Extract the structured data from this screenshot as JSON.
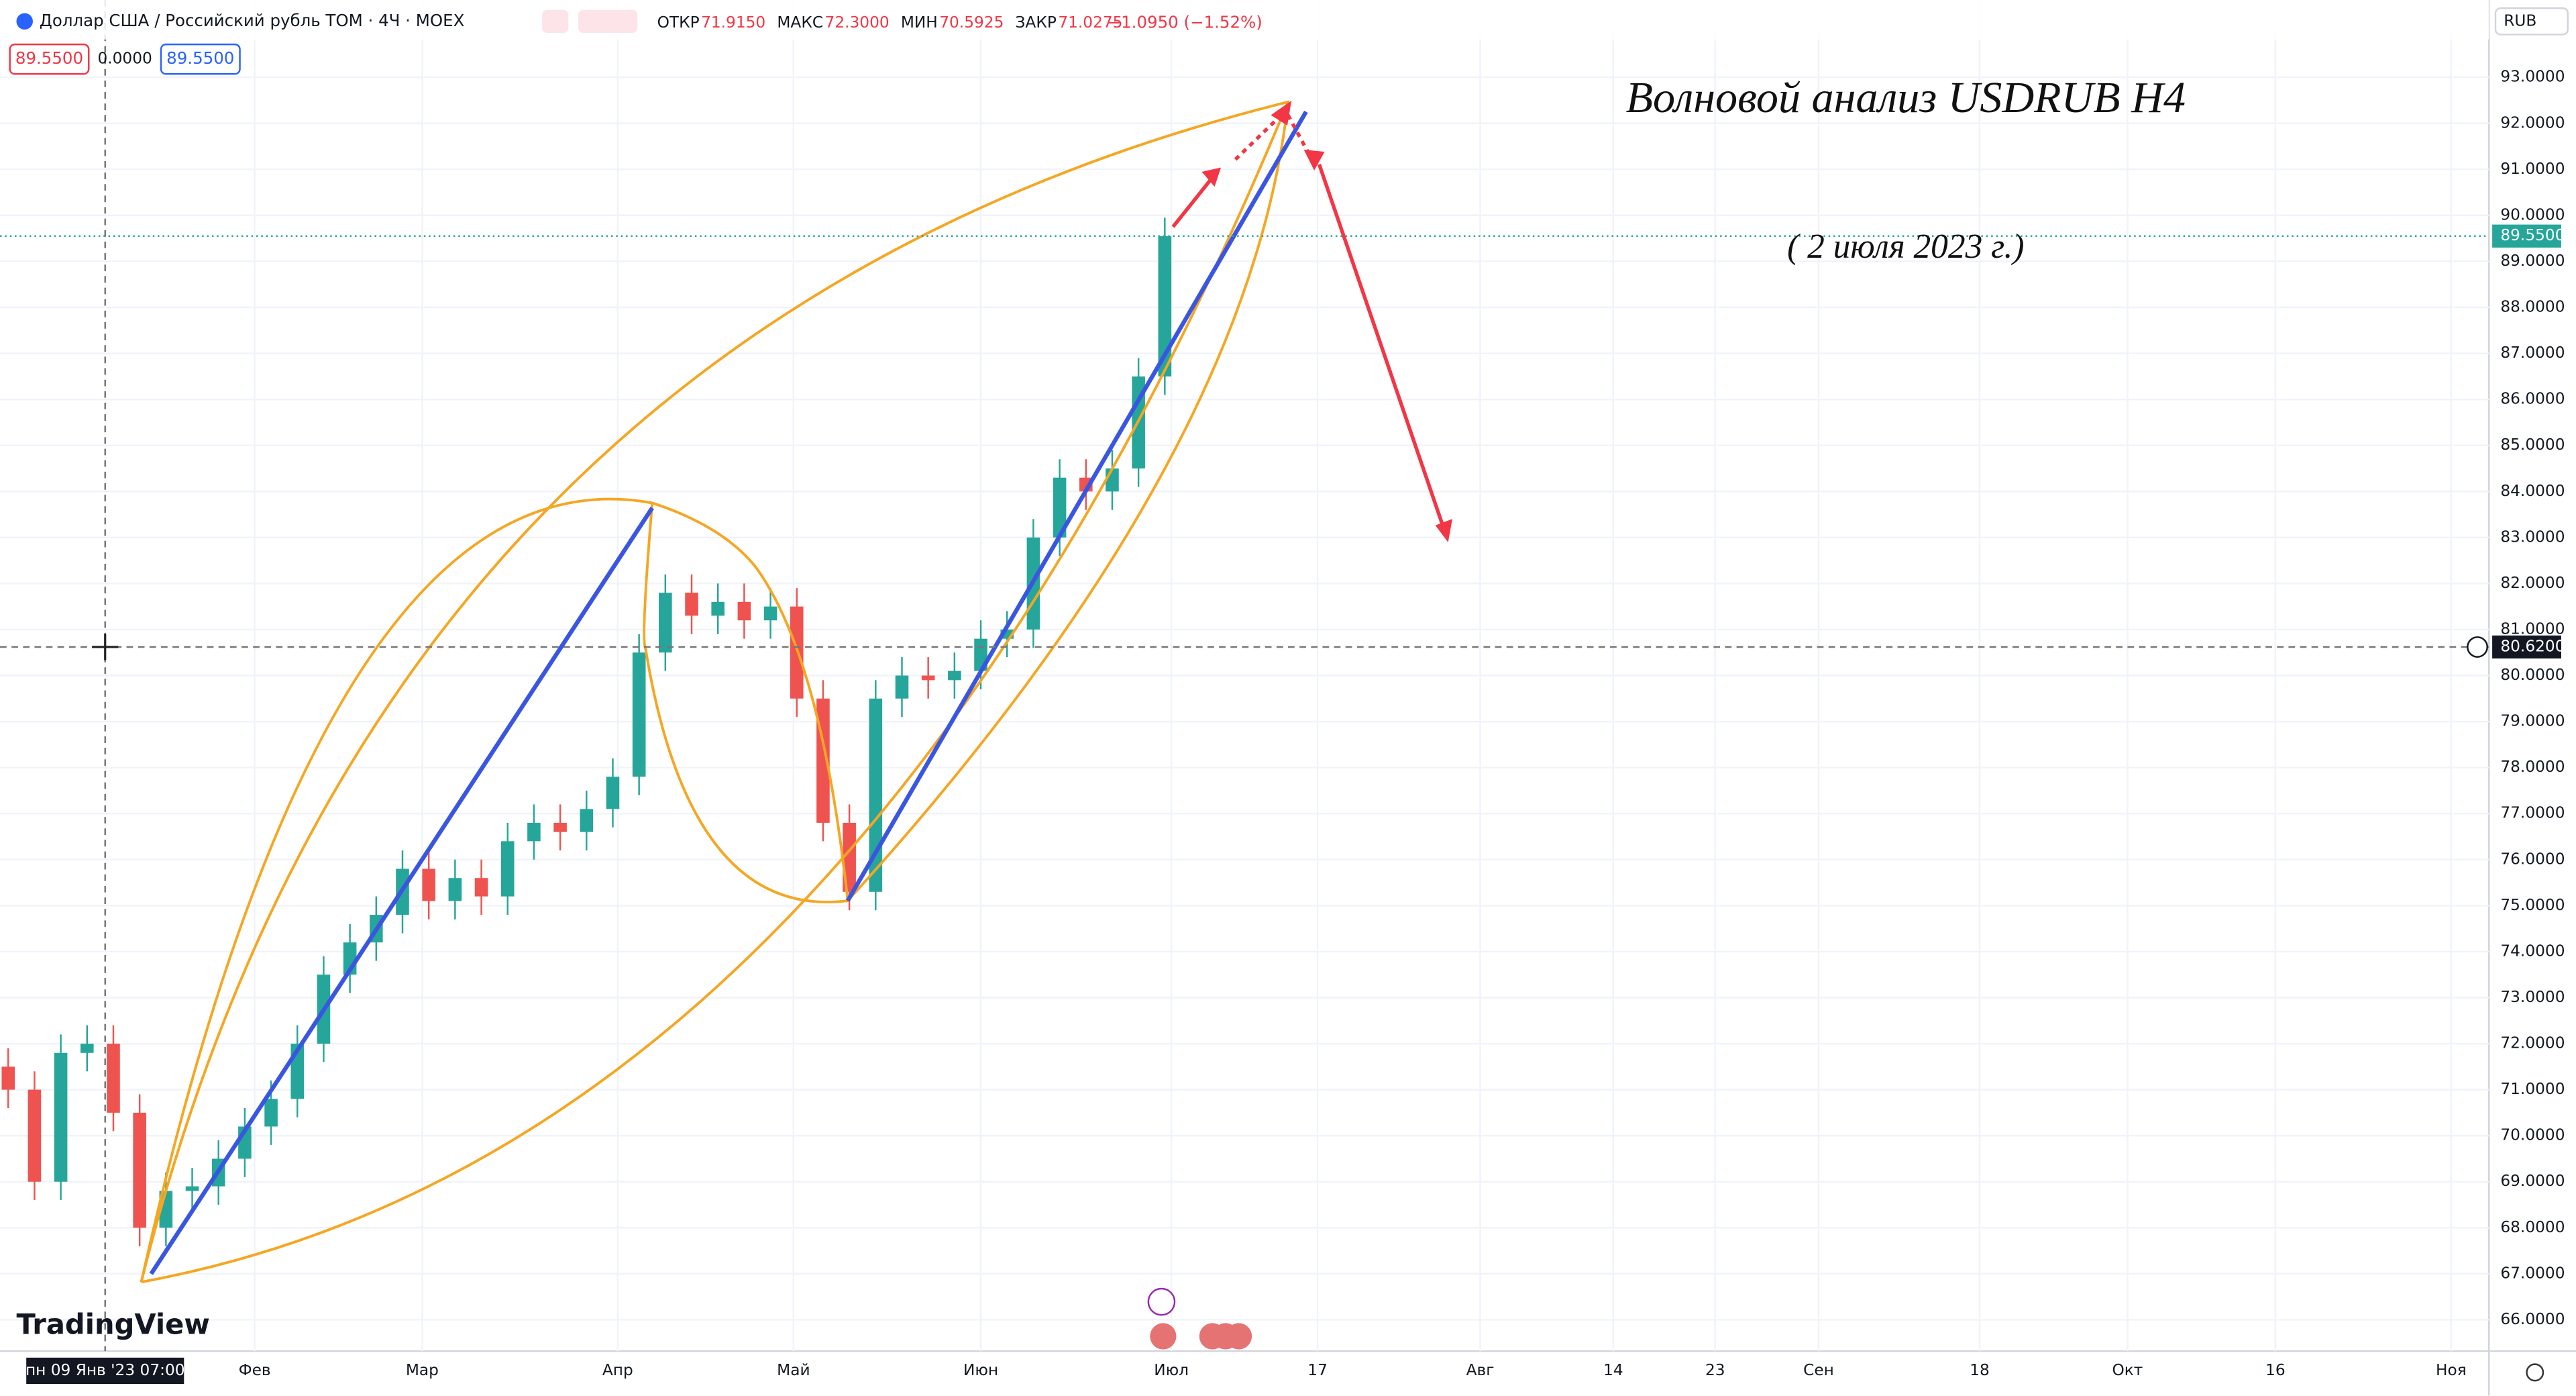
{
  "header": {
    "symbol": "Доллар США / Российский рубль TOM · 4Ч · MOEX",
    "ohlc": [
      {
        "label": "ОТКР",
        "value": "71.9150"
      },
      {
        "label": "МАКС",
        "value": "72.3000"
      },
      {
        "label": "МИН",
        "value": "70.5925"
      },
      {
        "label": "ЗАКР",
        "value": "71.0275"
      }
    ],
    "change": "−1.0950 (−1.52%)",
    "sell": "89.5500",
    "spread": "0.0000",
    "buy": "89.5500"
  },
  "currency": "RUB",
  "logo": "TradingView",
  "annotations": {
    "title": "Волновой анализ USDRUB H4",
    "date": "( 2 июля 2023 г.)"
  },
  "time_labels": [
    "Фев",
    "Мар",
    "Апр",
    "Май",
    "Июн",
    "Июл",
    "17",
    "Авг",
    "14",
    "23",
    "Сен",
    "18",
    "Окт",
    "16",
    "Ноя"
  ],
  "crosshair": {
    "time": "пн 09 Янв '23  07:00",
    "price": {
      "value": 80.62,
      "label": "80.6200"
    }
  },
  "last_price": {
    "value": 89.55,
    "label": "89.5500"
  },
  "chart_data": {
    "type": "candlestick",
    "ylim": [
      65.32,
      94.68
    ],
    "yticks": [
      {
        "value": 66,
        "label": "66.0000"
      },
      {
        "value": 67,
        "label": "67.0000"
      },
      {
        "value": 68,
        "label": "68.0000"
      },
      {
        "value": 69,
        "label": "69.0000"
      },
      {
        "value": 70,
        "label": "70.0000"
      },
      {
        "value": 71,
        "label": "71.0000"
      },
      {
        "value": 72,
        "label": "72.0000"
      },
      {
        "value": 73,
        "label": "73.0000"
      },
      {
        "value": 74,
        "label": "74.0000"
      },
      {
        "value": 75,
        "label": "75.0000"
      },
      {
        "value": 76,
        "label": "76.0000"
      },
      {
        "value": 77,
        "label": "77.0000"
      },
      {
        "value": 78,
        "label": "78.0000"
      },
      {
        "value": 79,
        "label": "79.0000"
      },
      {
        "value": 80,
        "label": "80.0000"
      },
      {
        "value": 81,
        "label": "81.0000"
      },
      {
        "value": 82,
        "label": "82.0000"
      },
      {
        "value": 83,
        "label": "83.0000"
      },
      {
        "value": 84,
        "label": "84.0000"
      },
      {
        "value": 85,
        "label": "85.0000"
      },
      {
        "value": 86,
        "label": "86.0000"
      },
      {
        "value": 87,
        "label": "87.0000"
      },
      {
        "value": 88,
        "label": "88.0000"
      },
      {
        "value": 89,
        "label": "89.0000"
      },
      {
        "value": 90,
        "label": "90.0000"
      },
      {
        "value": 91,
        "label": "91.0000"
      },
      {
        "value": 92,
        "label": "92.0000"
      },
      {
        "value": 93,
        "label": "93.0000"
      }
    ],
    "up_color": "#26a69a",
    "down_color": "#ef5350",
    "grid": true,
    "open": [
      71.5,
      71,
      69,
      71.8,
      72,
      70.5,
      68,
      68.8,
      68.9,
      69.5,
      70.2,
      70.8,
      72,
      73.5,
      74.2,
      74.8,
      75.8,
      75.1,
      75.6,
      75.2,
      76.4,
      76.8,
      76.6,
      77.1,
      77.8,
      80.5,
      81.8,
      81.3,
      81.6,
      81.2,
      81.5,
      79.5,
      76.8,
      75.3,
      79.5,
      80,
      79.9,
      80.1,
      80.8,
      81,
      83,
      84.3,
      84,
      84.5,
      86.5
    ],
    "high": [
      71.9,
      71.4,
      72.2,
      72.4,
      72.4,
      70.9,
      69.2,
      69.3,
      69.9,
      70.6,
      71.2,
      72.4,
      73.9,
      74.6,
      75.2,
      76.2,
      76.2,
      76,
      76,
      76.8,
      77.2,
      77.2,
      77.5,
      78.2,
      80.9,
      82.2,
      82.2,
      82,
      82,
      81.9,
      81.9,
      79.9,
      77.2,
      79.9,
      80.4,
      80.4,
      80.5,
      81.2,
      81.4,
      83.4,
      84.7,
      84.7,
      84.9,
      86.9,
      89.95
    ],
    "low": [
      70.6,
      68.6,
      68.6,
      71.4,
      70.1,
      67.6,
      67.6,
      68.4,
      68.5,
      69.1,
      69.8,
      70.4,
      71.6,
      73.1,
      73.8,
      74.4,
      74.7,
      74.7,
      74.8,
      74.8,
      76,
      76.2,
      76.2,
      76.7,
      77.4,
      80.1,
      80.9,
      80.9,
      80.8,
      80.8,
      79.1,
      76.4,
      74.9,
      74.9,
      79.1,
      79.5,
      79.5,
      79.7,
      80.4,
      80.6,
      82.6,
      83.6,
      83.6,
      84.1,
      86.1
    ],
    "close": [
      71,
      69,
      71.8,
      72,
      70.5,
      68,
      68.8,
      68.9,
      69.5,
      70.2,
      70.8,
      72,
      73.5,
      74.2,
      74.8,
      75.8,
      75.1,
      75.6,
      75.2,
      76.4,
      76.8,
      76.6,
      77.1,
      77.8,
      80.5,
      81.8,
      81.3,
      81.6,
      81.2,
      81.5,
      79.5,
      76.8,
      75.3,
      79.5,
      80,
      79.9,
      80.1,
      80.8,
      81,
      83,
      84.3,
      84,
      84.5,
      86.5,
      89.55
    ]
  }
}
